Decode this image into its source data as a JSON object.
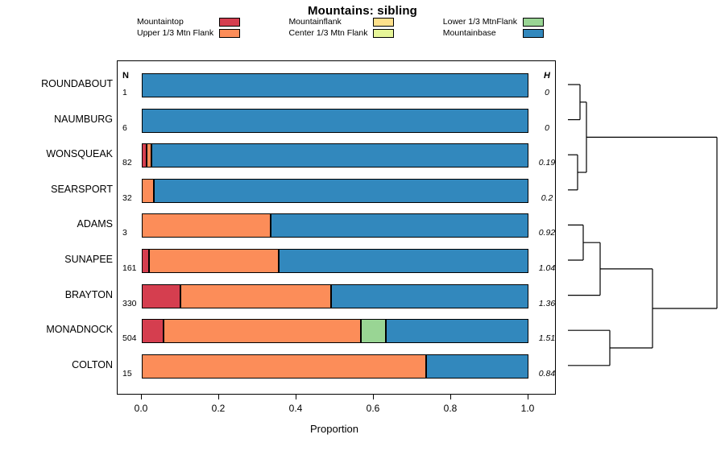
{
  "chart_data": {
    "type": "bar",
    "orientation": "horizontal-stacked",
    "title": "Mountains: sibling",
    "xlabel": "Proportion",
    "xlim": [
      0,
      1
    ],
    "x_ticks": [
      "0.0",
      "0.2",
      "0.4",
      "0.6",
      "0.8",
      "1.0"
    ],
    "x_tick_values": [
      0,
      0.2,
      0.4,
      0.6,
      0.8,
      1.0
    ],
    "n_header": "N",
    "h_header": "H",
    "categories": [
      {
        "name": "Mountaintop",
        "color": "#D53E4F"
      },
      {
        "name": "Upper 1/3 Mtn Flank",
        "color": "#FC8D59"
      },
      {
        "name": "Mountainflank",
        "color": "#FEE08B"
      },
      {
        "name": "Center 1/3 Mtn Flank",
        "color": "#E6F598"
      },
      {
        "name": "Lower 1/3 MtnFlank",
        "color": "#99D594"
      },
      {
        "name": "Mountainbase",
        "color": "#3288BD"
      }
    ],
    "legend_columns": [
      [
        0,
        1
      ],
      [
        2,
        3
      ],
      [
        4,
        5
      ]
    ],
    "rows": [
      {
        "label": "ROUNDABOUT",
        "n": "1",
        "h": "0",
        "segments": [
          {
            "category": "Mountainbase",
            "value": 1.0
          }
        ]
      },
      {
        "label": "NAUMBURG",
        "n": "6",
        "h": "0",
        "segments": [
          {
            "category": "Mountainbase",
            "value": 1.0
          }
        ]
      },
      {
        "label": "WONSQUEAK",
        "n": "82",
        "h": "0.19",
        "segments": [
          {
            "category": "Mountaintop",
            "value": 0.012
          },
          {
            "category": "Upper 1/3 Mtn Flank",
            "value": 0.014
          },
          {
            "category": "Mountainbase",
            "value": 0.974
          }
        ]
      },
      {
        "label": "SEARSPORT",
        "n": "32",
        "h": "0.2",
        "segments": [
          {
            "category": "Upper 1/3 Mtn Flank",
            "value": 0.031
          },
          {
            "category": "Mountainbase",
            "value": 0.969
          }
        ]
      },
      {
        "label": "ADAMS",
        "n": "3",
        "h": "0.92",
        "segments": [
          {
            "category": "Upper 1/3 Mtn Flank",
            "value": 0.333
          },
          {
            "category": "Mountainbase",
            "value": 0.667
          }
        ]
      },
      {
        "label": "SUNAPEE",
        "n": "161",
        "h": "1.04",
        "segments": [
          {
            "category": "Mountaintop",
            "value": 0.019
          },
          {
            "category": "Upper 1/3 Mtn Flank",
            "value": 0.335
          },
          {
            "category": "Mountainbase",
            "value": 0.646
          }
        ]
      },
      {
        "label": "BRAYTON",
        "n": "330",
        "h": "1.36",
        "segments": [
          {
            "category": "Mountaintop",
            "value": 0.1
          },
          {
            "category": "Upper 1/3 Mtn Flank",
            "value": 0.39
          },
          {
            "category": "Mountainbase",
            "value": 0.51
          }
        ]
      },
      {
        "label": "MONADNOCK",
        "n": "504",
        "h": "1.51",
        "segments": [
          {
            "category": "Mountaintop",
            "value": 0.057
          },
          {
            "category": "Upper 1/3 Mtn Flank",
            "value": 0.51
          },
          {
            "category": "Lower 1/3 MtnFlank",
            "value": 0.064
          },
          {
            "category": "Mountainbase",
            "value": 0.369
          }
        ]
      },
      {
        "label": "COLTON",
        "n": "15",
        "h": "0.84",
        "segments": [
          {
            "category": "Upper 1/3 Mtn Flank",
            "value": 0.735
          },
          {
            "category": "Mountainbase",
            "value": 0.265
          }
        ]
      }
    ],
    "dendrogram_segments": [
      [
        705,
        105,
        720,
        105
      ],
      [
        705,
        148.6,
        720,
        148.6
      ],
      [
        720,
        105,
        720,
        148.6
      ],
      [
        705,
        192.2,
        717,
        192.2
      ],
      [
        705,
        235.8,
        717,
        235.8
      ],
      [
        717,
        192.2,
        717,
        235.8
      ],
      [
        720,
        126.8,
        728,
        126.8
      ],
      [
        717,
        214,
        728,
        214
      ],
      [
        728,
        126.8,
        728,
        214
      ],
      [
        705,
        279.4,
        724,
        279.4
      ],
      [
        705,
        323,
        724,
        323
      ],
      [
        724,
        279.4,
        724,
        323
      ],
      [
        724,
        301.2,
        745,
        301.2
      ],
      [
        705,
        366.6,
        745,
        366.6
      ],
      [
        745,
        301.2,
        745,
        366.6
      ],
      [
        705,
        410.2,
        757,
        410.2
      ],
      [
        705,
        453.8,
        757,
        453.8
      ],
      [
        757,
        410.2,
        757,
        453.8
      ],
      [
        745,
        333.9,
        810,
        333.9
      ],
      [
        757,
        432,
        810,
        432
      ],
      [
        810,
        333.9,
        810,
        432
      ],
      [
        728,
        170.4,
        890,
        170.4
      ],
      [
        810,
        383,
        890,
        383
      ],
      [
        890,
        170.4,
        890,
        383
      ]
    ]
  }
}
